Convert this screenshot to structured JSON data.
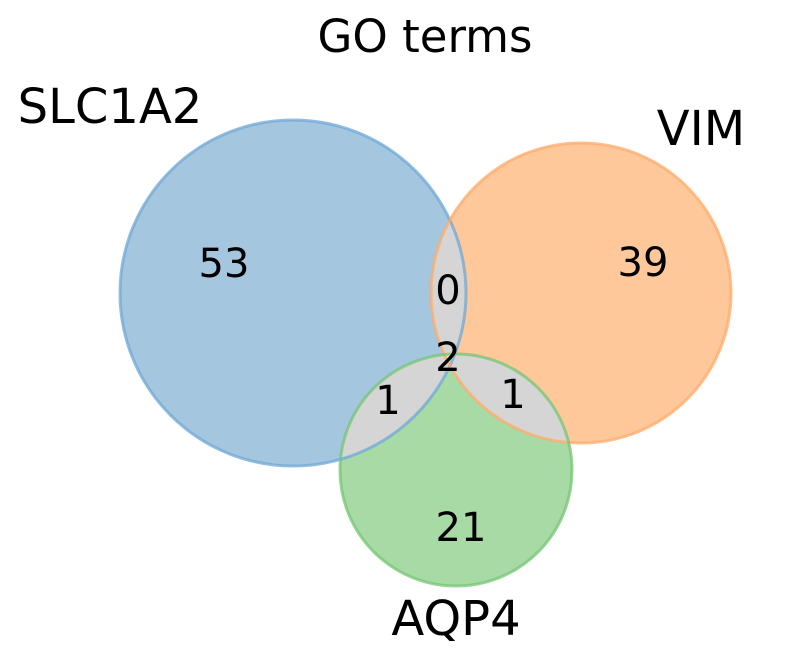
{
  "diagram": {
    "title": "GO terms",
    "sets": [
      {
        "id": "slc1a2",
        "label": "SLC1A2",
        "color": "#a4c6df",
        "edge_color": "#6fa8d6"
      },
      {
        "id": "vim",
        "label": "VIM",
        "color": "#fec89a",
        "edge_color": "#ffab6b"
      },
      {
        "id": "aqp4",
        "label": "AQP4",
        "color": "#a8daa5",
        "edge_color": "#76c574"
      }
    ],
    "overlap_color": "#d5d5d5",
    "center_color": "#f5ee9a",
    "regions": {
      "slc1a2_only": "53",
      "vim_only": "39",
      "aqp4_only": "21",
      "slc1a2_vim": "0",
      "slc1a2_aqp4": "1",
      "vim_aqp4": "1",
      "all_three": "2"
    }
  }
}
